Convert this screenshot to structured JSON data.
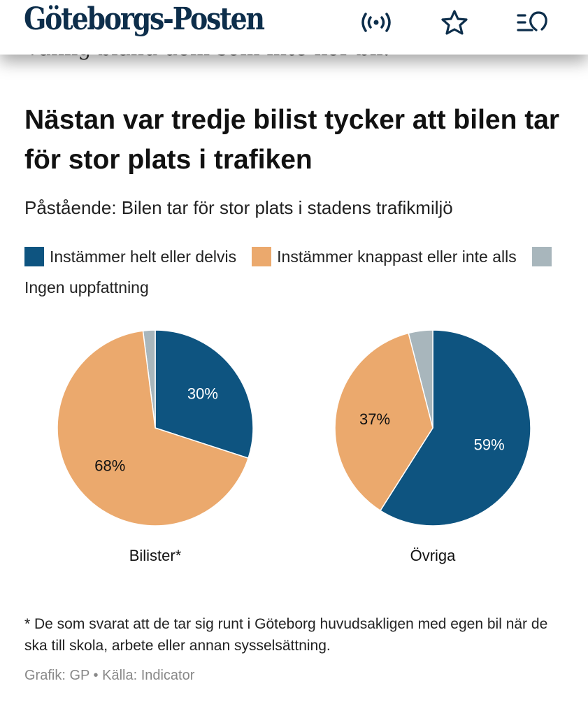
{
  "header": {
    "logo": "Göteborgs-Posten",
    "icons": [
      "live-radio-icon",
      "star-icon",
      "menu-search-icon"
    ]
  },
  "behind_text": "vanlig bland dem som inte kör bil.",
  "article": {
    "title": "Nästan var tredje bilist tycker att bilen tar för stor plats i trafiken",
    "subtitle": "Påstående: Bilen tar för stor plats i stadens trafikmiljö",
    "footnote": "* De som svarat att de tar sig runt i Göteborg huvudsakligen med egen bil när de ska till skola, arbete eller annan sysselsättning.",
    "source": "Grafik: GP • Källa: Indicator"
  },
  "chart_data": {
    "type": "pie",
    "legend": [
      {
        "name": "Instämmer helt eller delvis",
        "color": "#0e5480"
      },
      {
        "name": "Instämmer knappast eller inte alls",
        "color": "#eba96d"
      },
      {
        "name": "Ingen uppfattning",
        "color": "#a8b6bc"
      }
    ],
    "legend_placement": "top",
    "charts": [
      {
        "label": "Bilister*",
        "values": [
          30,
          68,
          2
        ],
        "data_labels": [
          "30%",
          "68%",
          ""
        ]
      },
      {
        "label": "Övriga",
        "values": [
          59,
          37,
          4
        ],
        "data_labels": [
          "59%",
          "37%",
          ""
        ]
      }
    ]
  }
}
